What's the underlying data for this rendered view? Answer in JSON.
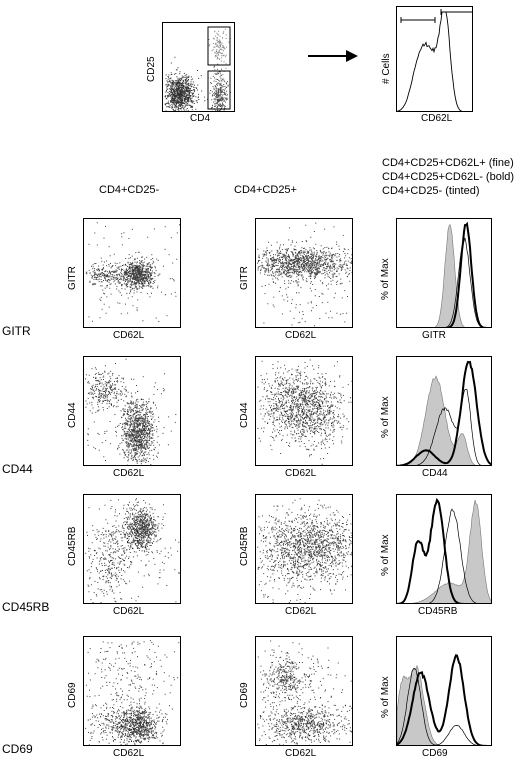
{
  "top": {
    "dot_xlabel": "CD4",
    "dot_ylabel": "CD25",
    "hist_xlabel": "CD62L",
    "hist_ylabel": "# Cells"
  },
  "columns": {
    "col1": "CD4+CD25-",
    "col2": "CD4+CD25+"
  },
  "legend": {
    "line1": "CD4+CD25+CD62L+ (fine)",
    "line2": "CD4+CD25+CD62L- (bold)",
    "line3": "CD4+CD25- (tinted)"
  },
  "common": {
    "xlabel": "CD62L",
    "hist_ylabel": "% of Max"
  },
  "rows": [
    {
      "marker": "GITR"
    },
    {
      "marker": "CD44"
    },
    {
      "marker": "CD45RB"
    },
    {
      "marker": "CD69"
    }
  ]
}
